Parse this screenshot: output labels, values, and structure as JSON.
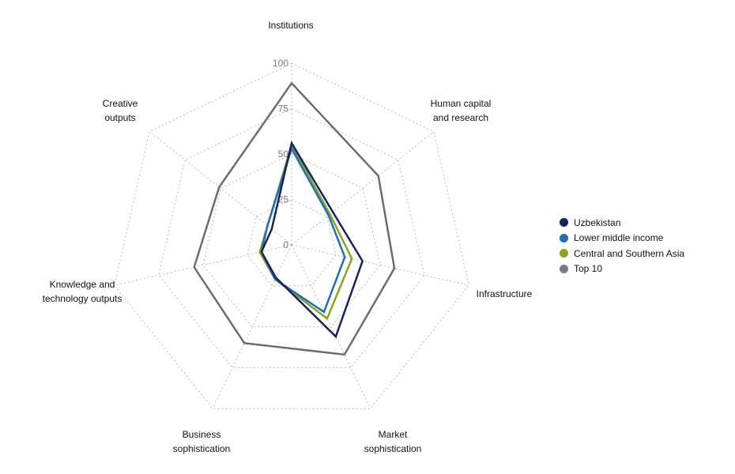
{
  "chart_data": {
    "type": "radar",
    "title": "",
    "axes": [
      "Institutions",
      "Human capital and research",
      "Infrastructure",
      "Market sophistication",
      "Business sophistication",
      "Knowledge and technology outputs",
      "Creative outputs"
    ],
    "axis_labels_display": [
      [
        "Institutions"
      ],
      [
        "Human capital",
        "and research"
      ],
      [
        "Infrastructure"
      ],
      [
        "Market",
        "sophistication"
      ],
      [
        "Business",
        "sophistication"
      ],
      [
        "Knowledge and",
        "technology outputs"
      ],
      [
        "Creative",
        "outputs"
      ]
    ],
    "range": [
      0,
      100
    ],
    "ticks": [
      "0",
      "25",
      "50",
      "75",
      "100"
    ],
    "grid": true,
    "legend_position": "right",
    "series": [
      {
        "name": "Top 10",
        "color": "#6b6b78",
        "values": [
          89,
          61,
          58,
          67,
          60,
          55,
          51
        ]
      },
      {
        "name": "Central and Southern Asia",
        "color": "#86a61c",
        "values": [
          55,
          27,
          34,
          45,
          21,
          18,
          17
        ]
      },
      {
        "name": "Lower middle income",
        "color": "#1f6fb5",
        "values": [
          53,
          26,
          30,
          41,
          21,
          17,
          17
        ]
      },
      {
        "name": "Uzbekistan",
        "color": "#16235f",
        "values": [
          56,
          29,
          40,
          56,
          20,
          17,
          14
        ]
      }
    ],
    "legend": [
      {
        "label": "Uzbekistan",
        "color": "#16235f"
      },
      {
        "label": "Lower middle income",
        "color": "#1f6fb5"
      },
      {
        "label": "Central and Southern Asia",
        "color": "#86a61c"
      },
      {
        "label": "Top 10",
        "color": "#7b7b88"
      }
    ]
  }
}
